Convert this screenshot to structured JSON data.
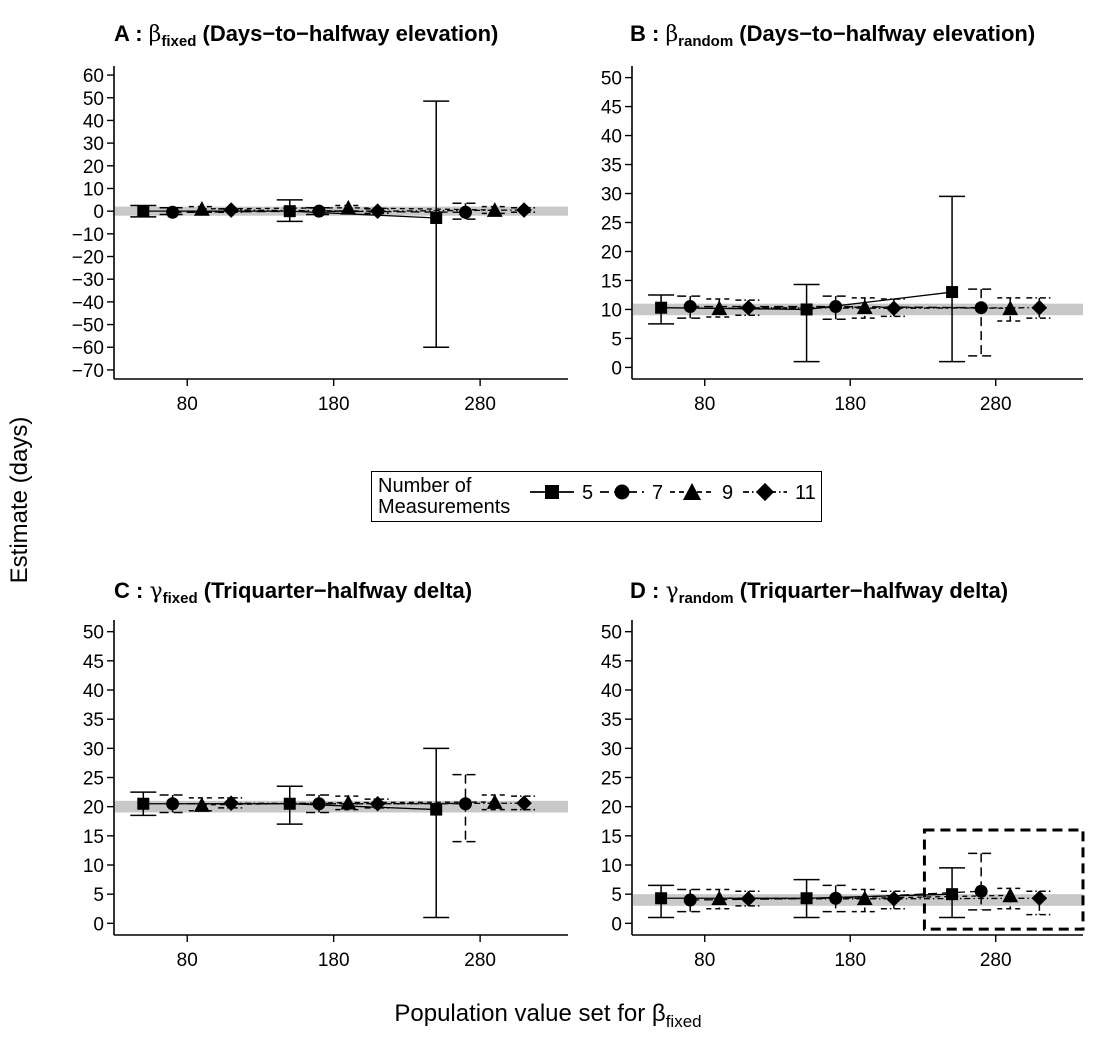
{
  "figure": {
    "y_label": "Estimate (days)",
    "x_label_main": "Population value set for β",
    "x_label_sub": "fixed"
  },
  "legend": {
    "title_line1": "Number of",
    "title_line2": "Measurements",
    "entries": [
      {
        "label": "5",
        "marker": "square",
        "line": "solid"
      },
      {
        "label": "7",
        "marker": "circle",
        "line": "longdash"
      },
      {
        "label": "9",
        "marker": "triangle",
        "line": "dash"
      },
      {
        "label": "11",
        "marker": "diamond",
        "line": "dashdot"
      }
    ]
  },
  "colors": {
    "reference_band": "#c8c8c8",
    "marks": "#000000",
    "background": "#ffffff"
  },
  "chart_data": [
    {
      "type": "line",
      "panel": "A",
      "title_greek": "β",
      "title_sub": "fixed",
      "title_text": "(Days−to−halfway elevation)",
      "xticks": [
        80,
        180,
        280
      ],
      "yticks": [
        60,
        50,
        40,
        30,
        20,
        10,
        0,
        -10,
        -20,
        -30,
        -40,
        -50,
        -60,
        -70
      ],
      "ylim": [
        -74,
        64
      ],
      "reference_value": 0,
      "reference_band": [
        -2,
        2
      ],
      "series": [
        {
          "name": "5",
          "points": [
            {
              "x": 50,
              "y": 0,
              "lo": -2.5,
              "hi": 2.5
            },
            {
              "x": 150,
              "y": 0,
              "lo": -4.5,
              "hi": 5
            },
            {
              "x": 250,
              "y": -3,
              "lo": -60,
              "hi": 48.5
            }
          ]
        },
        {
          "name": "7",
          "points": [
            {
              "x": 70,
              "y": -0.5,
              "lo": -1.5,
              "hi": 1.5
            },
            {
              "x": 170,
              "y": 0,
              "lo": -1.5,
              "hi": 1.5
            },
            {
              "x": 270,
              "y": -0.5,
              "lo": -3.5,
              "hi": 3.5
            }
          ]
        },
        {
          "name": "9",
          "points": [
            {
              "x": 90,
              "y": 1,
              "lo": -0.5,
              "hi": 2
            },
            {
              "x": 190,
              "y": 1.5,
              "lo": 0,
              "hi": 2.5
            },
            {
              "x": 290,
              "y": 0.5,
              "lo": -1,
              "hi": 2
            }
          ]
        },
        {
          "name": "11",
          "points": [
            {
              "x": 110,
              "y": 0.5,
              "lo": -0.5,
              "hi": 1
            },
            {
              "x": 210,
              "y": 0,
              "lo": -1,
              "hi": 1
            },
            {
              "x": 310,
              "y": 0.5,
              "lo": -0.5,
              "hi": 1.5
            }
          ]
        }
      ]
    },
    {
      "type": "line",
      "panel": "B",
      "title_greek": "β",
      "title_sub": "random",
      "title_text": "(Days−to−halfway elevation)",
      "xticks": [
        80,
        180,
        280
      ],
      "yticks": [
        50,
        45,
        40,
        35,
        30,
        25,
        20,
        15,
        10,
        5,
        0
      ],
      "ylim": [
        -2,
        52
      ],
      "reference_value": 10,
      "reference_band": [
        9,
        11
      ],
      "series": [
        {
          "name": "5",
          "points": [
            {
              "x": 50,
              "y": 10.3,
              "lo": 7.5,
              "hi": 12.5
            },
            {
              "x": 150,
              "y": 10,
              "lo": 1,
              "hi": 14.3
            },
            {
              "x": 250,
              "y": 13,
              "lo": 1,
              "hi": 29.5
            }
          ]
        },
        {
          "name": "7",
          "points": [
            {
              "x": 70,
              "y": 10.5,
              "lo": 8.5,
              "hi": 12.3
            },
            {
              "x": 170,
              "y": 10.5,
              "lo": 8.3,
              "hi": 12.3
            },
            {
              "x": 270,
              "y": 10.3,
              "lo": 2,
              "hi": 13.5
            }
          ]
        },
        {
          "name": "9",
          "points": [
            {
              "x": 90,
              "y": 10.2,
              "lo": 8.7,
              "hi": 11.8
            },
            {
              "x": 190,
              "y": 10.4,
              "lo": 8.5,
              "hi": 12
            },
            {
              "x": 290,
              "y": 10.2,
              "lo": 8,
              "hi": 12
            }
          ]
        },
        {
          "name": "11",
          "points": [
            {
              "x": 110,
              "y": 10.3,
              "lo": 9,
              "hi": 11.6
            },
            {
              "x": 210,
              "y": 10.2,
              "lo": 8.8,
              "hi": 11.8
            },
            {
              "x": 310,
              "y": 10.3,
              "lo": 8.5,
              "hi": 12
            }
          ]
        }
      ]
    },
    {
      "type": "line",
      "panel": "C",
      "title_greek": "γ",
      "title_sub": "fixed",
      "title_text": "(Triquarter−halfway delta)",
      "xticks": [
        80,
        180,
        280
      ],
      "yticks": [
        50,
        45,
        40,
        35,
        30,
        25,
        20,
        15,
        10,
        5,
        0
      ],
      "ylim": [
        -2,
        52
      ],
      "reference_value": 20,
      "reference_band": [
        19,
        21
      ],
      "series": [
        {
          "name": "5",
          "points": [
            {
              "x": 50,
              "y": 20.5,
              "lo": 18.5,
              "hi": 22.5
            },
            {
              "x": 150,
              "y": 20.5,
              "lo": 17,
              "hi": 23.5
            },
            {
              "x": 250,
              "y": 19.5,
              "lo": 1,
              "hi": 30
            }
          ]
        },
        {
          "name": "7",
          "points": [
            {
              "x": 70,
              "y": 20.5,
              "lo": 19,
              "hi": 22
            },
            {
              "x": 170,
              "y": 20.5,
              "lo": 19,
              "hi": 22
            },
            {
              "x": 270,
              "y": 20.5,
              "lo": 14,
              "hi": 25.5
            }
          ]
        },
        {
          "name": "9",
          "points": [
            {
              "x": 90,
              "y": 20.3,
              "lo": 19.3,
              "hi": 21.5
            },
            {
              "x": 190,
              "y": 20.7,
              "lo": 19.5,
              "hi": 21.8
            },
            {
              "x": 290,
              "y": 20.8,
              "lo": 19.5,
              "hi": 22
            }
          ]
        },
        {
          "name": "11",
          "points": [
            {
              "x": 110,
              "y": 20.6,
              "lo": 19.8,
              "hi": 21.5
            },
            {
              "x": 210,
              "y": 20.5,
              "lo": 19.8,
              "hi": 21.3
            },
            {
              "x": 310,
              "y": 20.6,
              "lo": 19.5,
              "hi": 21.8
            }
          ]
        }
      ]
    },
    {
      "type": "line",
      "panel": "D",
      "title_greek": "γ",
      "title_sub": "random",
      "title_text": "(Triquarter−halfway delta)",
      "xticks": [
        80,
        180,
        280
      ],
      "yticks": [
        50,
        45,
        40,
        35,
        30,
        25,
        20,
        15,
        10,
        5,
        0
      ],
      "ylim": [
        -2,
        52
      ],
      "reference_value": 4,
      "reference_band": [
        3,
        5
      ],
      "highlight_box": {
        "x": [
          231,
          340
        ],
        "y": [
          -1,
          16
        ]
      },
      "series": [
        {
          "name": "5",
          "points": [
            {
              "x": 50,
              "y": 4.3,
              "lo": 1,
              "hi": 6.5
            },
            {
              "x": 150,
              "y": 4.3,
              "lo": 1,
              "hi": 7.5
            },
            {
              "x": 250,
              "y": 5,
              "lo": 1,
              "hi": 9.5
            }
          ]
        },
        {
          "name": "7",
          "points": [
            {
              "x": 70,
              "y": 4,
              "lo": 2,
              "hi": 5.8
            },
            {
              "x": 170,
              "y": 4.3,
              "lo": 2,
              "hi": 6.5
            },
            {
              "x": 270,
              "y": 5.5,
              "lo": 2.3,
              "hi": 12
            }
          ]
        },
        {
          "name": "9",
          "points": [
            {
              "x": 90,
              "y": 4.3,
              "lo": 2.5,
              "hi": 5.8
            },
            {
              "x": 190,
              "y": 4.3,
              "lo": 2,
              "hi": 5.8
            },
            {
              "x": 290,
              "y": 4.8,
              "lo": 2.5,
              "hi": 6
            }
          ]
        },
        {
          "name": "11",
          "points": [
            {
              "x": 110,
              "y": 4.2,
              "lo": 3,
              "hi": 5.5
            },
            {
              "x": 210,
              "y": 4.2,
              "lo": 2.5,
              "hi": 5.5
            },
            {
              "x": 310,
              "y": 4.3,
              "lo": 1.5,
              "hi": 5.5
            }
          ]
        }
      ]
    }
  ]
}
